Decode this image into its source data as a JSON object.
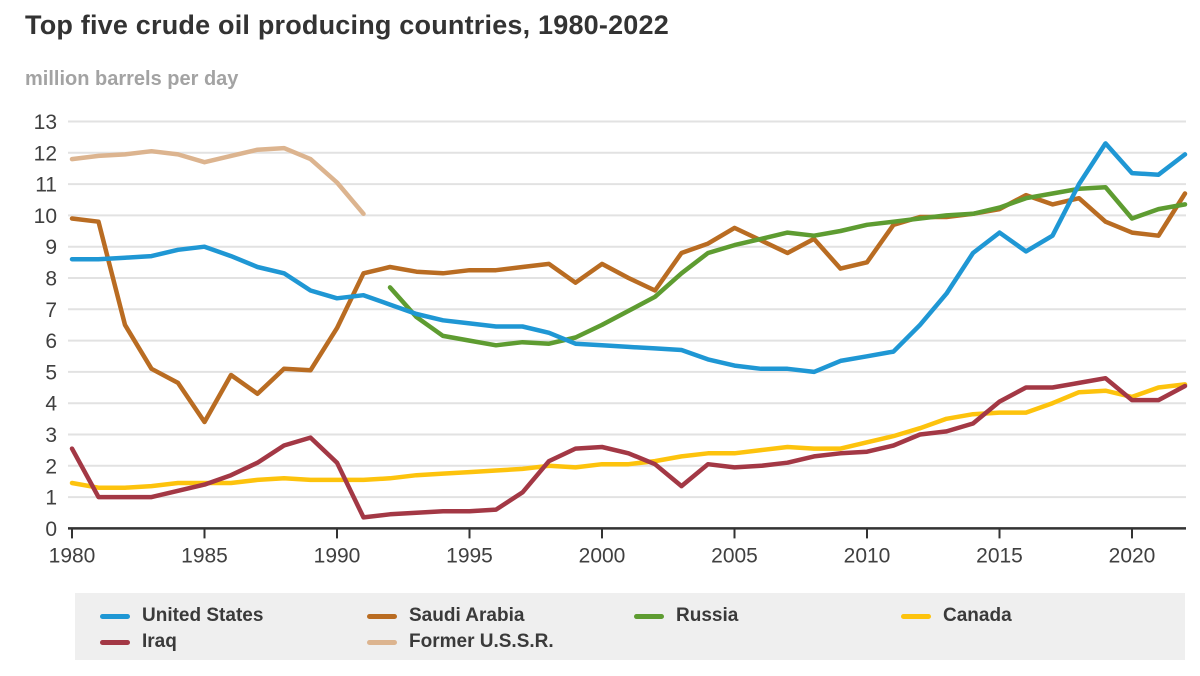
{
  "title": "Top five crude oil producing countries, 1980-2022",
  "subtitle": "million barrels per day",
  "colors": {
    "title": "#333333",
    "subtitle": "#a3a3a3",
    "grid": "#e2e2e2",
    "axis": "#333333",
    "tick_label": "#404040",
    "legend_bg": "#efefef",
    "legend_text": "#3a3a3a"
  },
  "chart_data": {
    "type": "line",
    "title": "Top five crude oil producing countries, 1980-2022",
    "ylabel": "million barrels per day",
    "xlabel": "",
    "xlim": [
      1980,
      2022
    ],
    "ylim": [
      0,
      13
    ],
    "grid": true,
    "legend_position": "bottom",
    "x_ticks": [
      1980,
      1985,
      1990,
      1995,
      2000,
      2005,
      2010,
      2015,
      2020
    ],
    "y_ticks": [
      0,
      1,
      2,
      3,
      4,
      5,
      6,
      7,
      8,
      9,
      10,
      11,
      12,
      13
    ],
    "years_start": 1980,
    "years_end": 2022,
    "series": [
      {
        "name": "United States",
        "color": "#1f97d4",
        "start_year": 1980,
        "values": [
          8.6,
          8.6,
          8.65,
          8.7,
          8.9,
          9.0,
          8.7,
          8.35,
          8.15,
          7.6,
          7.35,
          7.45,
          7.15,
          6.85,
          6.65,
          6.55,
          6.45,
          6.45,
          6.25,
          5.9,
          5.85,
          5.8,
          5.75,
          5.7,
          5.4,
          5.2,
          5.1,
          5.1,
          5.0,
          5.35,
          5.5,
          5.65,
          6.5,
          7.5,
          8.8,
          9.45,
          8.85,
          9.35,
          11.0,
          12.3,
          11.35,
          11.3,
          11.95
        ]
      },
      {
        "name": "Saudi Arabia",
        "color": "#b96c22",
        "start_year": 1980,
        "values": [
          9.9,
          9.8,
          6.5,
          5.1,
          4.65,
          3.4,
          4.9,
          4.3,
          5.1,
          5.05,
          6.4,
          8.15,
          8.35,
          8.2,
          8.15,
          8.25,
          8.25,
          8.35,
          8.45,
          7.85,
          8.45,
          8.0,
          7.6,
          8.8,
          9.1,
          9.6,
          9.2,
          8.8,
          9.25,
          8.3,
          8.5,
          9.7,
          9.95,
          9.95,
          10.05,
          10.2,
          10.65,
          10.35,
          10.55,
          9.8,
          9.45,
          9.35,
          10.7
        ]
      },
      {
        "name": "Russia",
        "color": "#5e9c31",
        "start_year": 1992,
        "values": [
          7.7,
          6.75,
          6.15,
          6.0,
          5.85,
          5.95,
          5.9,
          6.1,
          6.5,
          6.95,
          7.4,
          8.15,
          8.8,
          9.05,
          9.25,
          9.45,
          9.35,
          9.5,
          9.7,
          9.8,
          9.9,
          10.0,
          10.05,
          10.25,
          10.55,
          10.7,
          10.85,
          10.9,
          9.9,
          10.2,
          10.35
        ]
      },
      {
        "name": "Canada",
        "color": "#fdc30d",
        "start_year": 1980,
        "values": [
          1.45,
          1.3,
          1.3,
          1.35,
          1.45,
          1.45,
          1.45,
          1.55,
          1.6,
          1.55,
          1.55,
          1.55,
          1.6,
          1.7,
          1.75,
          1.8,
          1.85,
          1.9,
          2.0,
          1.95,
          2.05,
          2.05,
          2.15,
          2.3,
          2.4,
          2.4,
          2.5,
          2.6,
          2.55,
          2.55,
          2.75,
          2.95,
          3.2,
          3.5,
          3.65,
          3.7,
          3.7,
          4.0,
          4.35,
          4.4,
          4.2,
          4.5,
          4.6
        ]
      },
      {
        "name": "Iraq",
        "color": "#a33845",
        "start_year": 1980,
        "values": [
          2.55,
          1.0,
          1.0,
          1.0,
          1.2,
          1.4,
          1.7,
          2.1,
          2.65,
          2.9,
          2.1,
          0.35,
          0.45,
          0.5,
          0.55,
          0.55,
          0.6,
          1.15,
          2.15,
          2.55,
          2.6,
          2.4,
          2.05,
          1.35,
          2.05,
          1.95,
          2.0,
          2.1,
          2.3,
          2.4,
          2.45,
          2.65,
          3.0,
          3.1,
          3.35,
          4.05,
          4.5,
          4.5,
          4.65,
          4.8,
          4.1,
          4.1,
          4.55
        ]
      },
      {
        "name": "Former U.S.S.R.",
        "color": "#dcb48f",
        "start_year": 1980,
        "values": [
          11.8,
          11.9,
          11.95,
          12.05,
          11.95,
          11.7,
          11.9,
          12.1,
          12.15,
          11.8,
          11.05,
          10.05
        ]
      }
    ]
  }
}
